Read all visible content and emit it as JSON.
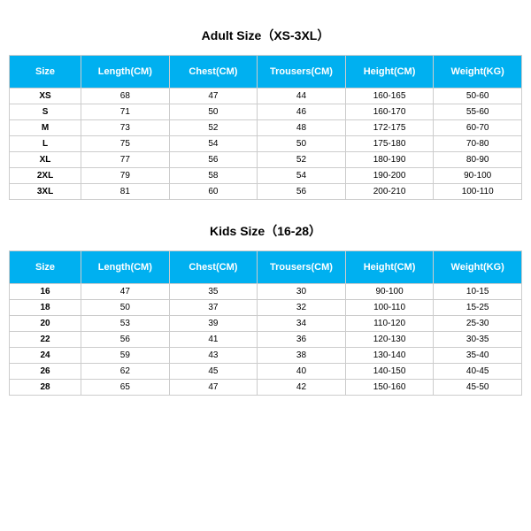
{
  "header_color": "#00b0f0",
  "border_color": "#cccccc",
  "adult": {
    "title": "Adult Size（XS-3XL）",
    "columns": [
      "Size",
      "Length(CM)",
      "Chest(CM)",
      "Trousers(CM)",
      "Height(CM)",
      "Weight(KG)"
    ],
    "rows": [
      [
        "XS",
        "68",
        "47",
        "44",
        "160-165",
        "50-60"
      ],
      [
        "S",
        "71",
        "50",
        "46",
        "160-170",
        "55-60"
      ],
      [
        "M",
        "73",
        "52",
        "48",
        "172-175",
        "60-70"
      ],
      [
        "L",
        "75",
        "54",
        "50",
        "175-180",
        "70-80"
      ],
      [
        "XL",
        "77",
        "56",
        "52",
        "180-190",
        "80-90"
      ],
      [
        "2XL",
        "79",
        "58",
        "54",
        "190-200",
        "90-100"
      ],
      [
        "3XL",
        "81",
        "60",
        "56",
        "200-210",
        "100-110"
      ]
    ]
  },
  "kids": {
    "title": "Kids Size（16-28）",
    "columns": [
      "Size",
      "Length(CM)",
      "Chest(CM)",
      "Trousers(CM)",
      "Height(CM)",
      "Weight(KG)"
    ],
    "rows": [
      [
        "16",
        "47",
        "35",
        "30",
        "90-100",
        "10-15"
      ],
      [
        "18",
        "50",
        "37",
        "32",
        "100-110",
        "15-25"
      ],
      [
        "20",
        "53",
        "39",
        "34",
        "110-120",
        "25-30"
      ],
      [
        "22",
        "56",
        "41",
        "36",
        "120-130",
        "30-35"
      ],
      [
        "24",
        "59",
        "43",
        "38",
        "130-140",
        "35-40"
      ],
      [
        "26",
        "62",
        "45",
        "40",
        "140-150",
        "40-45"
      ],
      [
        "28",
        "65",
        "47",
        "42",
        "150-160",
        "45-50"
      ]
    ]
  }
}
